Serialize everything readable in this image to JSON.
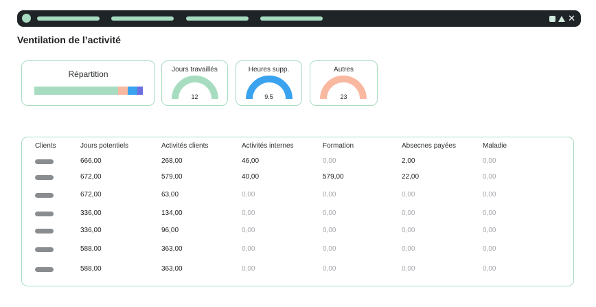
{
  "page_title": "Ventilation de l’activité",
  "colors": {
    "accent_green": "#a8dcc1",
    "blue": "#3aa2ee",
    "salmon": "#f9b9a0",
    "violet": "#6d6ee0",
    "titlebar": "#1f2427"
  },
  "window_controls": {
    "icons": [
      "square-icon",
      "triangle-icon",
      "close-icon"
    ],
    "close_glyph": "✕"
  },
  "repartition": {
    "title": "Répartition",
    "segments": [
      {
        "color": "#a8dcc1",
        "fraction": 0.77
      },
      {
        "color": "#f9b9a0",
        "fraction": 0.09
      },
      {
        "color": "#3aa2ee",
        "fraction": 0.09
      },
      {
        "color": "#6d6ee0",
        "fraction": 0.05
      }
    ]
  },
  "kpis": [
    {
      "label": "Jours travaillés",
      "value": "12",
      "color": "#a8dcc1"
    },
    {
      "label": "Heures supp.",
      "value": "9.5",
      "color": "#3aa2ee"
    },
    {
      "label": "Autres",
      "value": "23",
      "color": "#f9b9a0"
    }
  ],
  "table": {
    "headers": [
      "Clients",
      "Jours potentiels",
      "Activités clients",
      "Activités internes",
      "Formation",
      "Absecnes payées",
      "Maladie"
    ],
    "rows": [
      [
        "666,00",
        "268,00",
        "46,00",
        "0,00",
        "2,00",
        "0,00"
      ],
      [
        "672,00",
        "579,00",
        "40,00",
        "579,00",
        "22,00",
        "0,00"
      ],
      [
        "672,00",
        "63,00",
        "0,00",
        "0,00",
        "0,00",
        "0,00"
      ],
      [
        "336,00",
        "134,00",
        "0,00",
        "0,00",
        "0,00",
        "0,00"
      ],
      [
        "336,00",
        "96,00",
        "0,00",
        "0,00",
        "0,00",
        "0,00"
      ],
      [
        "588,00",
        "363,00",
        "0,00",
        "0,00",
        "0,00",
        "0,00"
      ],
      [
        "588,00",
        "363,00",
        "0,00",
        "0,00",
        "0,00",
        "0,00"
      ]
    ]
  }
}
